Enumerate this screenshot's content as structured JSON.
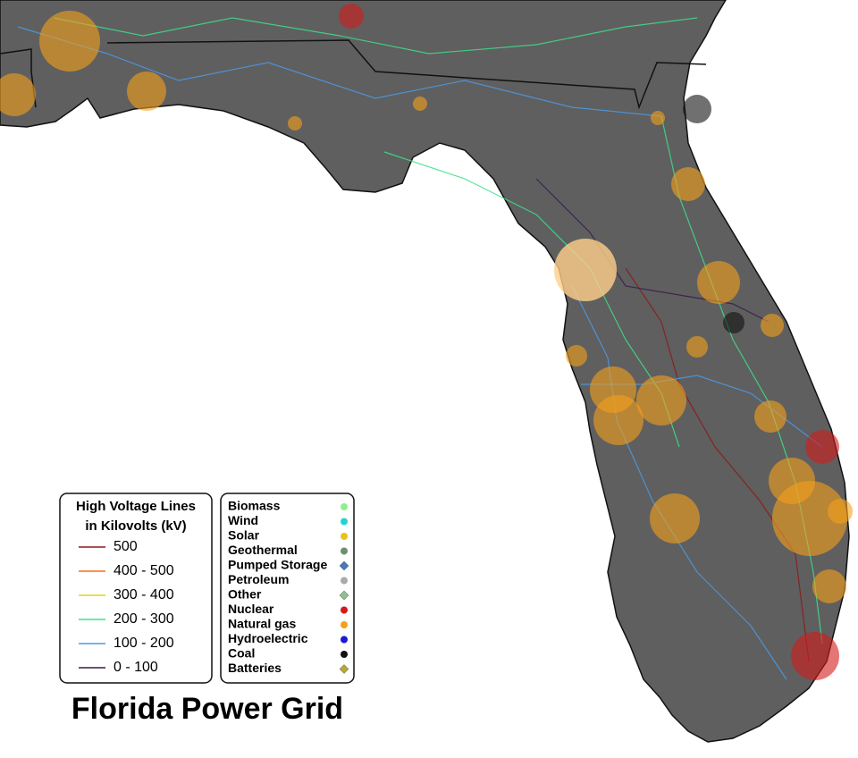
{
  "title": "Florida Power Grid",
  "voltage_legend": {
    "title_lines": [
      "High Voltage Lines",
      "in Kilovolts (kV)"
    ],
    "items": [
      {
        "label": "500",
        "color": "#8b1a1a"
      },
      {
        "label": "400 - 500",
        "color": "#ff6a1a"
      },
      {
        "label": "300 - 400",
        "color": "#e6d21e"
      },
      {
        "label": "200 - 300",
        "color": "#3ee08a"
      },
      {
        "label": "100 - 200",
        "color": "#4a9be8"
      },
      {
        "label": "0 - 100",
        "color": "#3a1a4a"
      }
    ]
  },
  "source_legend": {
    "items": [
      {
        "label": "Biomass",
        "color": "#90ee90",
        "shape": "circle"
      },
      {
        "label": "Wind",
        "color": "#22d3d3",
        "shape": "circle"
      },
      {
        "label": "Solar",
        "color": "#e6c21e",
        "shape": "circle"
      },
      {
        "label": "Geothermal",
        "color": "#6f8f6f",
        "shape": "circle"
      },
      {
        "label": "Pumped Storage",
        "color": "#4a78b8",
        "shape": "diamond"
      },
      {
        "label": "Petroleum",
        "color": "#aaaaaa",
        "shape": "circle"
      },
      {
        "label": "Other",
        "color": "#8fbf8f",
        "shape": "diamond"
      },
      {
        "label": "Nuclear",
        "color": "#d41a1a",
        "shape": "circle"
      },
      {
        "label": "Natural gas",
        "color": "#f5a01a",
        "shape": "circle"
      },
      {
        "label": "Hydroelectric",
        "color": "#1a1ad4",
        "shape": "circle"
      },
      {
        "label": "Coal",
        "color": "#111111",
        "shape": "circle"
      },
      {
        "label": "Batteries",
        "color": "#b8a838",
        "shape": "diamond"
      }
    ]
  }
}
